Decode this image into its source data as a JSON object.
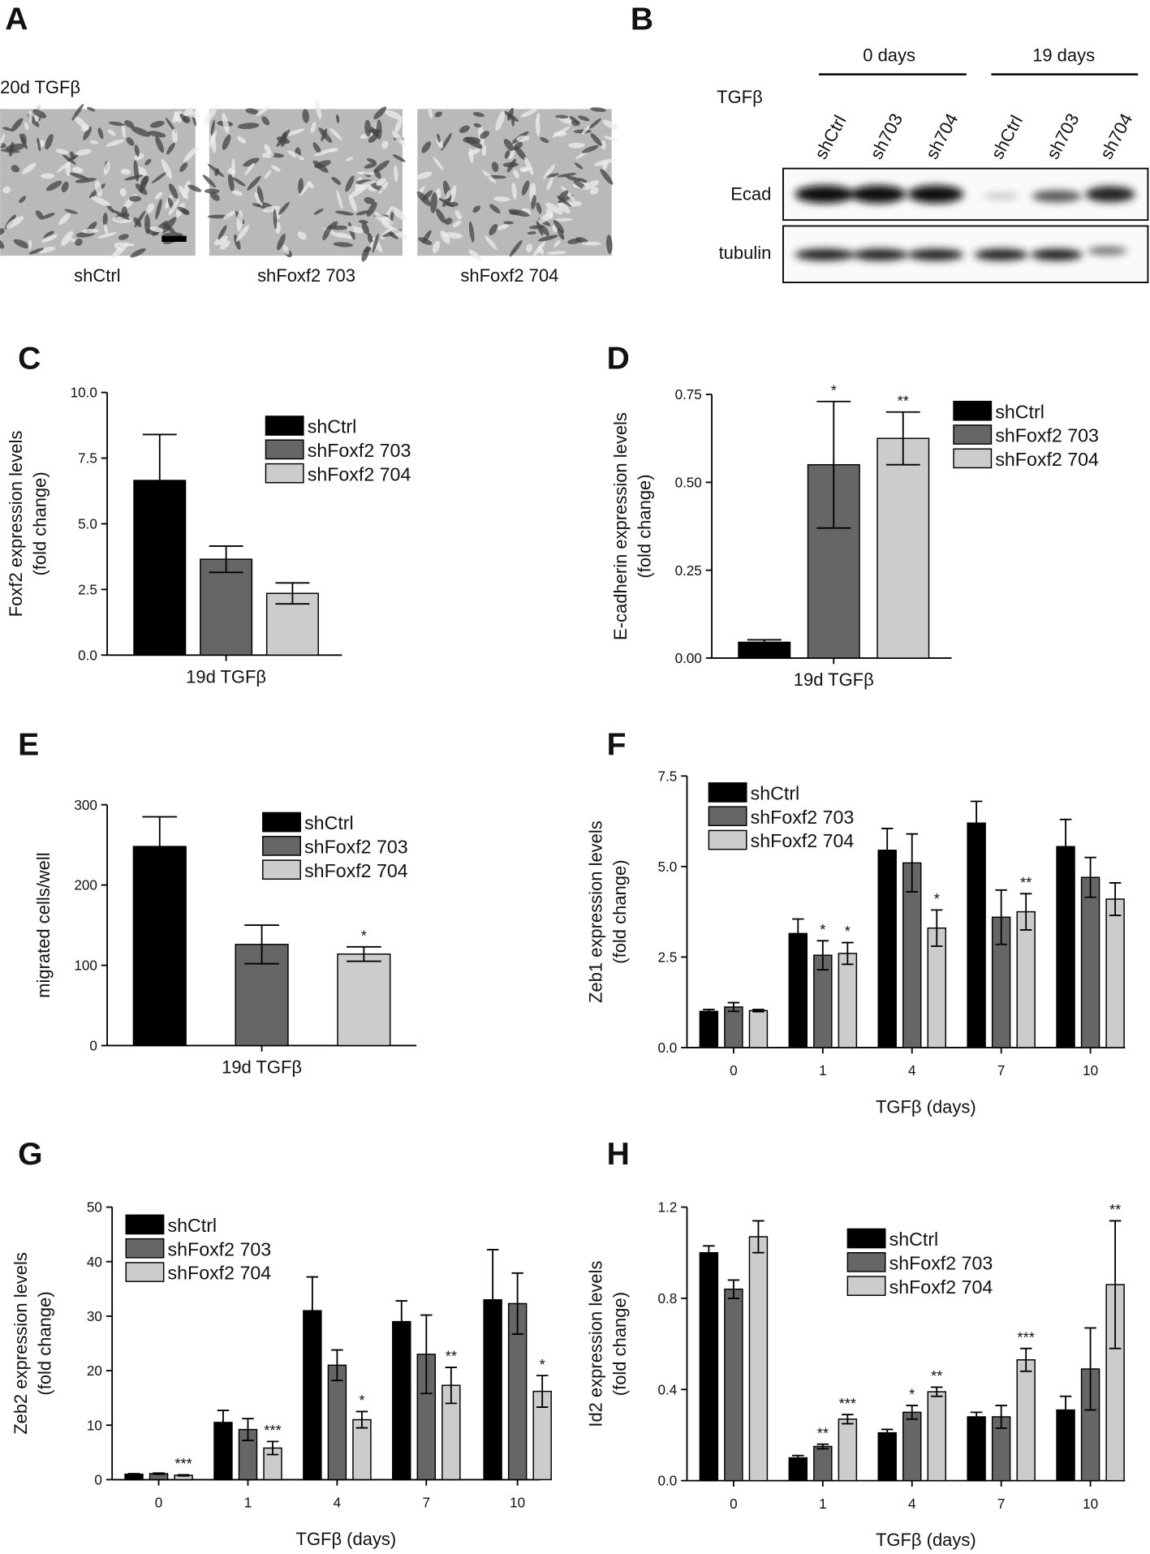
{
  "panels": [
    {
      "letter": "A",
      "label": "20d TGFβ",
      "captions": [
        "shCtrl",
        "shFoxf2 703",
        "shFoxf2 704"
      ]
    },
    {
      "letter": "B",
      "groups": [
        "0 days",
        "19 days"
      ],
      "treatment": "TGFβ",
      "lanes": [
        "shCtrl",
        "sh703",
        "sh704",
        "shCtrl",
        "sh703",
        "sh704"
      ],
      "rows": [
        "Ecad",
        "tubulin"
      ]
    }
  ],
  "chart_data": [
    {
      "type": "bar",
      "panel": "C",
      "ylabel": [
        "Foxf2 expression levels",
        "(fold change)"
      ],
      "categories": [
        "19d TGFβ"
      ],
      "ylim": [
        0,
        10
      ],
      "yticks": [
        {
          "value": 0,
          "label": "0.0"
        },
        {
          "value": 2.5,
          "label": "2.5"
        },
        {
          "value": 5,
          "label": "5.0"
        },
        {
          "value": 7.5,
          "label": "7.5"
        },
        {
          "value": 10,
          "label": "10.0"
        }
      ],
      "series": [
        {
          "name": "shCtrl",
          "color": "#000000",
          "values": [
            6.65
          ],
          "errors": [
            1.75
          ]
        },
        {
          "name": "shFoxf2 703",
          "color": "#666666",
          "values": [
            3.65
          ],
          "errors": [
            0.5
          ]
        },
        {
          "name": "shFoxf2 704",
          "color": "#cccccc",
          "values": [
            2.35
          ],
          "errors": [
            0.4
          ]
        }
      ]
    },
    {
      "type": "bar",
      "panel": "D",
      "ylabel": [
        "E-cadherin  expression levels",
        "(fold change)"
      ],
      "categories": [
        "19d TGFβ"
      ],
      "ylim": [
        0,
        0.75
      ],
      "yticks": [
        {
          "value": 0,
          "label": "0.00"
        },
        {
          "value": 0.25,
          "label": "0.25"
        },
        {
          "value": 0.5,
          "label": "0.50"
        },
        {
          "value": 0.75,
          "label": "0.75"
        }
      ],
      "series": [
        {
          "name": "shCtrl",
          "color": "#000000",
          "values": [
            0.045
          ],
          "errors": [
            0.007
          ]
        },
        {
          "name": "shFoxf2 703",
          "color": "#666666",
          "values": [
            0.55
          ],
          "errors": [
            0.18
          ],
          "significance": [
            "*"
          ]
        },
        {
          "name": "shFoxf2 704",
          "color": "#cccccc",
          "values": [
            0.625
          ],
          "errors": [
            0.075
          ],
          "significance": [
            "**"
          ]
        }
      ]
    },
    {
      "type": "bar",
      "panel": "E",
      "ylabel": [
        "migrated cells/well"
      ],
      "categories": [
        "19d TGFβ"
      ],
      "ylim": [
        0,
        300
      ],
      "yticks": [
        0,
        100,
        200,
        300
      ],
      "series": [
        {
          "name": "shCtrl",
          "color": "#000000",
          "values": [
            248
          ],
          "errors": [
            37
          ]
        },
        {
          "name": "shFoxf2 703",
          "color": "#666666",
          "values": [
            126
          ],
          "errors": [
            24
          ]
        },
        {
          "name": "shFoxf2 704",
          "color": "#cccccc",
          "values": [
            114
          ],
          "errors": [
            9
          ],
          "significance": [
            "*"
          ]
        }
      ]
    },
    {
      "type": "bar",
      "panel": "F",
      "ylabel": [
        "Zeb1 expression levels",
        "(fold change)"
      ],
      "xlabel": "TGFβ  (days)",
      "categories": [
        "0",
        "1",
        "4",
        "7",
        "10"
      ],
      "ylim": [
        0,
        7.5
      ],
      "yticks": [
        {
          "value": 0,
          "label": "0.0"
        },
        {
          "value": 2.5,
          "label": "2.5"
        },
        {
          "value": 5,
          "label": "5.0"
        },
        {
          "value": 7.5,
          "label": "7.5"
        }
      ],
      "series": [
        {
          "name": "shCtrl",
          "color": "#000000",
          "values": [
            1.0,
            3.15,
            5.45,
            6.2,
            5.55
          ],
          "errors": [
            0.05,
            0.4,
            0.6,
            0.6,
            0.75
          ]
        },
        {
          "name": "shFoxf2 703",
          "color": "#666666",
          "values": [
            1.12,
            2.55,
            5.1,
            3.6,
            4.7
          ],
          "errors": [
            0.12,
            0.4,
            0.8,
            0.75,
            0.55
          ],
          "significance": [
            null,
            "*",
            null,
            null,
            null
          ]
        },
        {
          "name": "shFoxf2 704",
          "color": "#cccccc",
          "values": [
            1.02,
            2.6,
            3.3,
            3.75,
            4.1
          ],
          "errors": [
            0.03,
            0.3,
            0.5,
            0.5,
            0.45
          ],
          "significance": [
            null,
            "*",
            "*",
            "**",
            null
          ]
        }
      ]
    },
    {
      "type": "bar",
      "panel": "G",
      "ylabel": [
        "Zeb2 expression levels",
        "(fold change)"
      ],
      "xlabel": "TGFβ  (days)",
      "categories": [
        "0",
        "1",
        "4",
        "7",
        "10"
      ],
      "ylim": [
        0,
        50
      ],
      "yticks": [
        0,
        10,
        20,
        30,
        40,
        50
      ],
      "series": [
        {
          "name": "shCtrl",
          "color": "#000000",
          "values": [
            1,
            10.5,
            31,
            29,
            33
          ],
          "errors": [
            0.1,
            2.2,
            6.2,
            3.8,
            9.2
          ]
        },
        {
          "name": "shFoxf2 703",
          "color": "#666666",
          "values": [
            1.1,
            9.2,
            21,
            23,
            32.3
          ],
          "errors": [
            0.1,
            2,
            2.8,
            7.2,
            5.6
          ]
        },
        {
          "name": "shFoxf2 704",
          "color": "#cccccc",
          "values": [
            0.8,
            5.8,
            11,
            17.3,
            16.2
          ],
          "errors": [
            0.1,
            1.2,
            1.5,
            3.3,
            2.9
          ],
          "significance": [
            "***",
            "***",
            "*",
            "**",
            "*"
          ]
        }
      ]
    },
    {
      "type": "bar",
      "panel": "H",
      "ylabel": [
        "Id2 expression levels",
        "(fold change)"
      ],
      "xlabel": "TGFβ  (days)",
      "categories": [
        "0",
        "1",
        "4",
        "7",
        "10"
      ],
      "ylim": [
        0,
        1.2
      ],
      "yticks": [
        {
          "value": 0,
          "label": "0.0"
        },
        {
          "value": 0.4,
          "label": "0.4"
        },
        {
          "value": 0.8,
          "label": "0.8"
        },
        {
          "value": 1.2,
          "label": "1.2"
        }
      ],
      "series": [
        {
          "name": "shCtrl",
          "color": "#000000",
          "values": [
            1.0,
            0.1,
            0.21,
            0.28,
            0.31
          ],
          "errors": [
            0.03,
            0.01,
            0.015,
            0.02,
            0.06
          ]
        },
        {
          "name": "shFoxf2 703",
          "color": "#666666",
          "values": [
            0.84,
            0.15,
            0.3,
            0.28,
            0.49
          ],
          "errors": [
            0.04,
            0.01,
            0.03,
            0.05,
            0.18
          ],
          "significance": [
            null,
            "**",
            "*",
            null,
            null
          ]
        },
        {
          "name": "shFoxf2 704",
          "color": "#cccccc",
          "values": [
            1.07,
            0.27,
            0.39,
            0.53,
            0.86
          ],
          "errors": [
            0.07,
            0.02,
            0.02,
            0.05,
            0.28
          ],
          "significance": [
            null,
            "***",
            "**",
            "***",
            "**"
          ]
        }
      ]
    }
  ]
}
